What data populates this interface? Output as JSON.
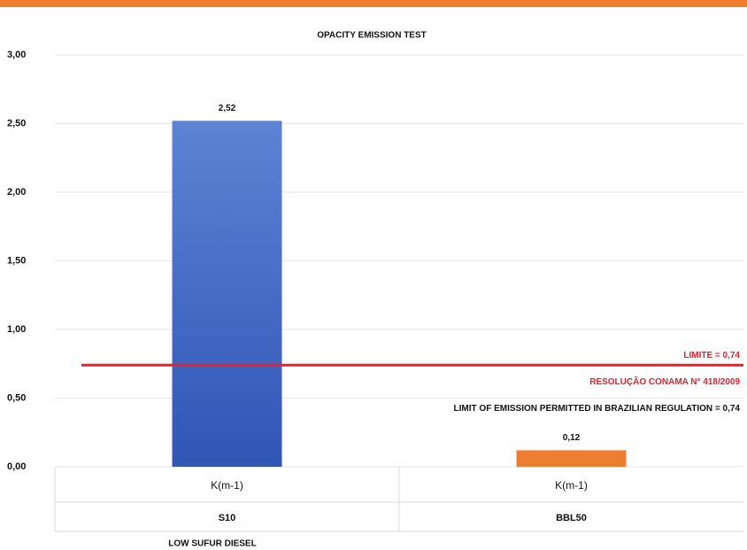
{
  "chart_data": {
    "type": "bar",
    "title": "OPACITY EMISSION TEST",
    "categories": [
      "S10",
      "BBL50"
    ],
    "subcategories": [
      "K(m-1)",
      "K(m-1)"
    ],
    "values": [
      2.52,
      0.12
    ],
    "value_labels": [
      "2,52",
      "0,12"
    ],
    "colors": [
      "#3b63c4",
      "#ed7d31"
    ],
    "ylim": [
      0,
      3
    ],
    "yticks": [
      {
        "value": 0,
        "label": "0,00"
      },
      {
        "value": 0.5,
        "label": "0,50"
      },
      {
        "value": 1,
        "label": "1,00"
      },
      {
        "value": 1.5,
        "label": "1,50"
      },
      {
        "value": 2,
        "label": "2,00"
      },
      {
        "value": 2.5,
        "label": "2,50"
      },
      {
        "value": 3,
        "label": "3,00"
      }
    ],
    "grid": true,
    "reference_line": {
      "value": 0.74,
      "color": "#e8202a",
      "labels": [
        "LIMITE = 0,74",
        "RESOLUÇÃO CONAMA N° 418/2009"
      ],
      "note": "LIMIT OF EMISSION PERMITTED IN BRAZILIAN REGULATION = 0,74"
    },
    "annotation": "LOW SUFUR DIESEL"
  }
}
